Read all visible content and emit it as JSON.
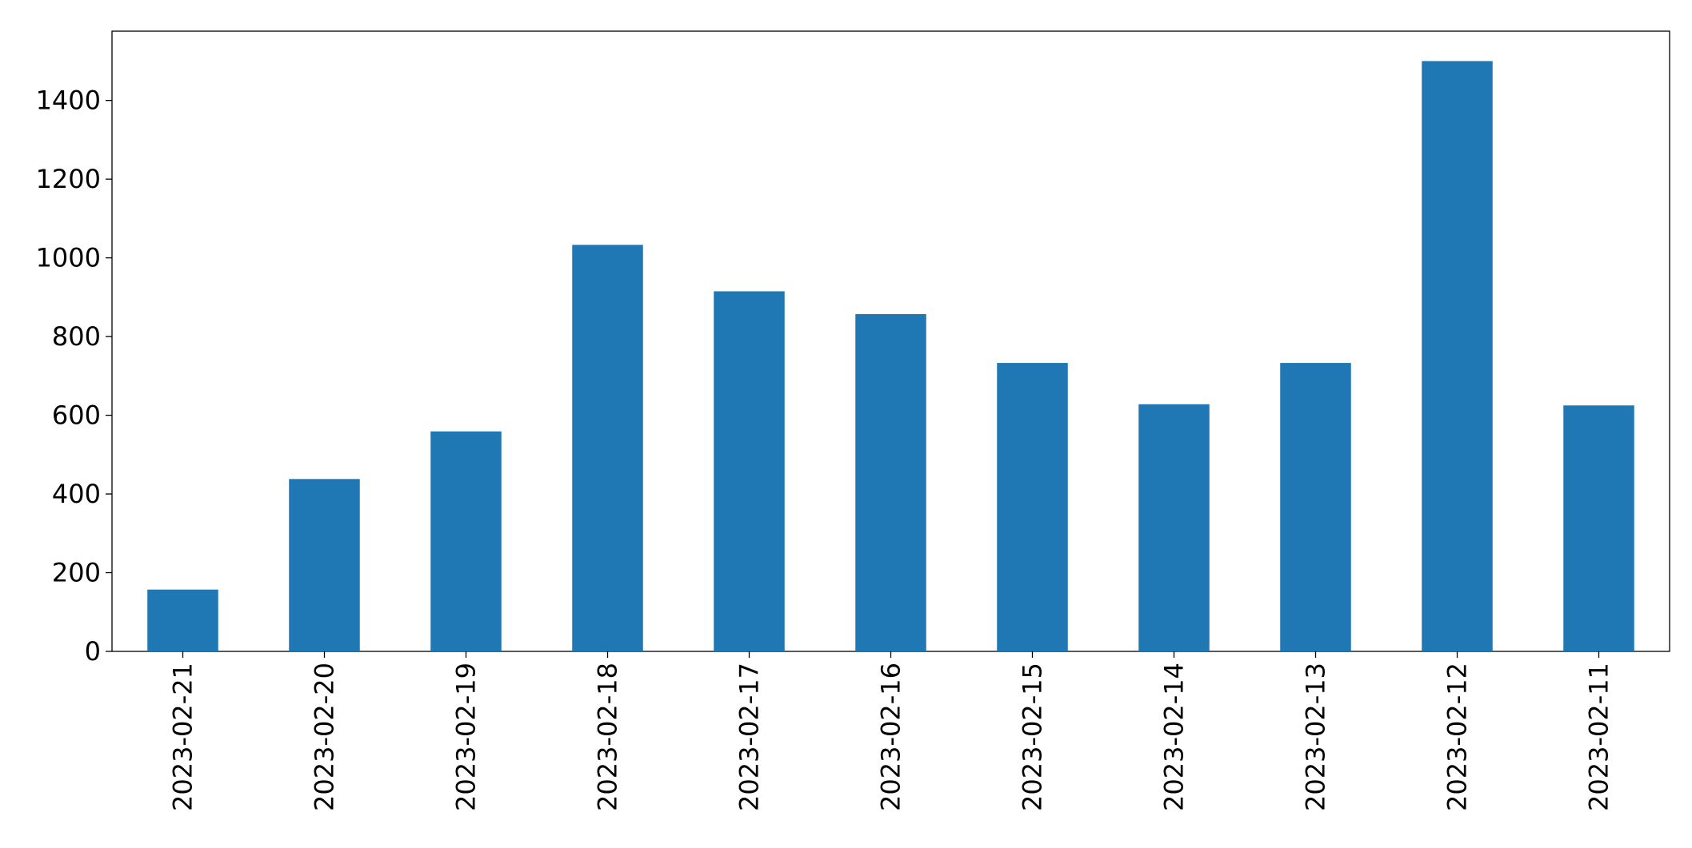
{
  "chart_data": {
    "type": "bar",
    "categories": [
      "2023-02-21",
      "2023-02-20",
      "2023-02-19",
      "2023-02-18",
      "2023-02-17",
      "2023-02-16",
      "2023-02-15",
      "2023-02-14",
      "2023-02-13",
      "2023-02-12",
      "2023-02-11"
    ],
    "values": [
      157,
      438,
      559,
      1033,
      915,
      857,
      733,
      628,
      733,
      1500,
      625
    ],
    "color": "#1f77b4",
    "ylim": [
      0,
      1576
    ],
    "yticks": [
      0,
      200,
      400,
      600,
      800,
      1000,
      1200,
      1400
    ],
    "grid": false
  }
}
